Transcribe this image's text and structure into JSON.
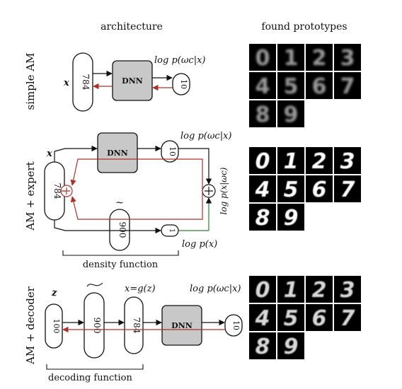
{
  "header": {
    "architecture": "architecture",
    "prototypes": "found prototypes"
  },
  "rows": [
    {
      "label": "simple AM"
    },
    {
      "label": "AM + expert"
    },
    {
      "label": "AM + decoder"
    }
  ],
  "nodes": {
    "dnn": "DNN",
    "n784": "784",
    "n10": "10",
    "n900": "900",
    "n1": "1",
    "n100": "100"
  },
  "math": {
    "x": "x",
    "z": "z",
    "tilde": "~",
    "log_pwc_x": "log p(ωc|x)",
    "log_px_wc": "log p(x|ωc)",
    "log_px": "log p(x)",
    "x_eq_gz": "x=g(z)"
  },
  "captions": {
    "density": "density function",
    "decoding": "decoding function"
  },
  "digits": [
    "0",
    "1",
    "2",
    "3",
    "4",
    "5",
    "6",
    "7",
    "8",
    "9"
  ],
  "colors": {
    "forward": "#111111",
    "backward": "#b03028",
    "green": "#2e7d32",
    "dnn_fill": "#c8c8c8"
  }
}
